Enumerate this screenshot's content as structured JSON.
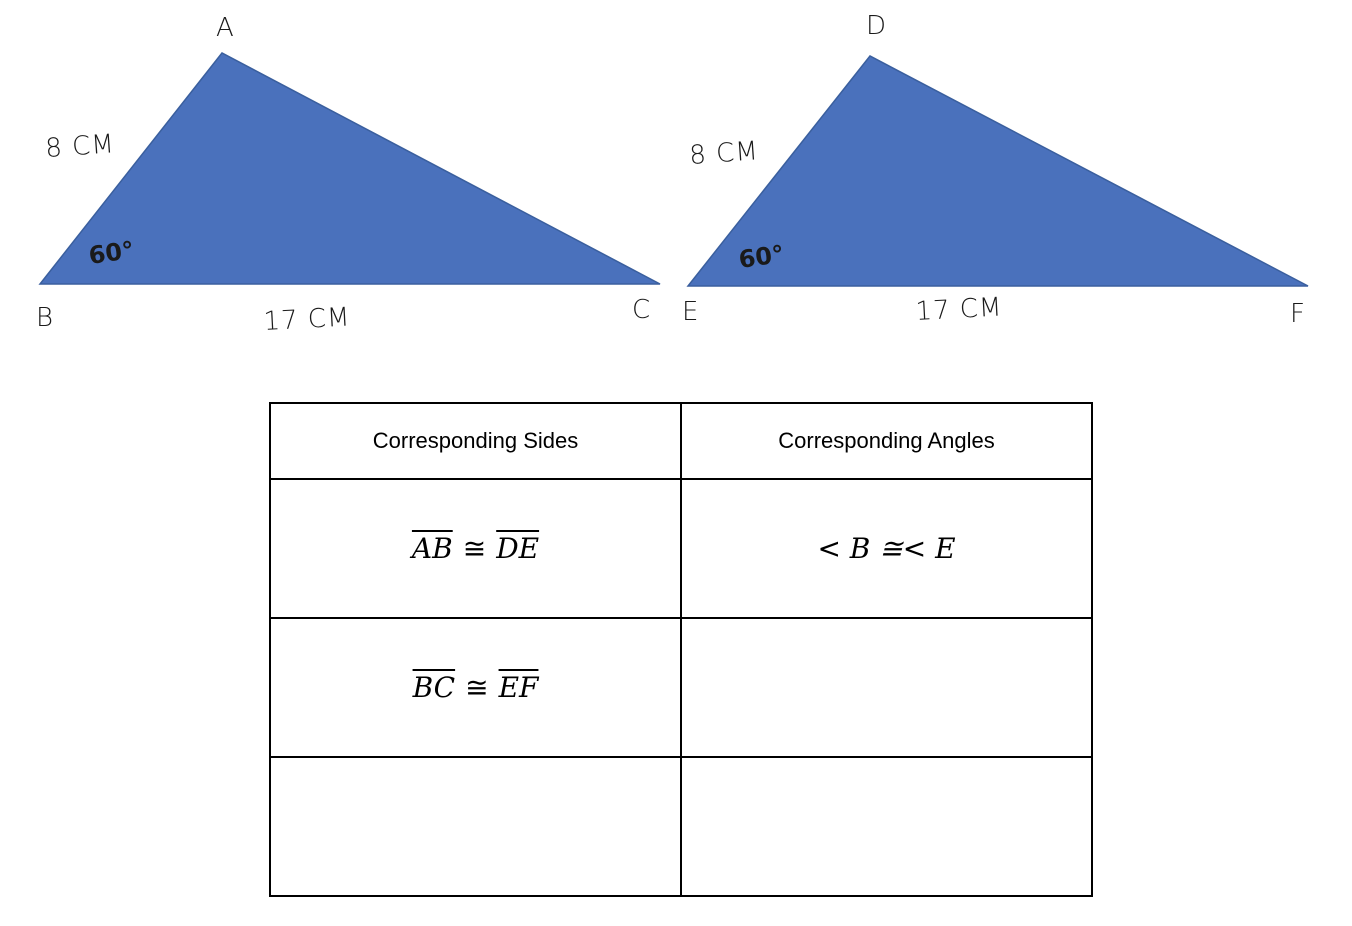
{
  "colors": {
    "triangle_fill": "#4a71bc",
    "triangle_stroke": "#3a5f9e",
    "text": "#1a1a1a"
  },
  "triangle_left": {
    "vertices": {
      "top": "A",
      "bottom_left": "B",
      "bottom_right": "C"
    },
    "side_label": "8 CM",
    "base_label": "17 CM",
    "angle_label": "60°"
  },
  "triangle_right": {
    "vertices": {
      "top": "D",
      "bottom_left": "E",
      "bottom_right": "F"
    },
    "side_label": "8 CM",
    "base_label": "17 CM",
    "angle_label": "60°"
  },
  "table": {
    "headers": [
      "Corresponding Sides",
      "Corresponding Angles"
    ],
    "rows": [
      {
        "side": {
          "a": "AB",
          "op": "≅",
          "b": "DE"
        },
        "angle": {
          "text": "< B ≅< E"
        }
      },
      {
        "side": {
          "a": "BC",
          "op": "≅",
          "b": "EF"
        },
        "angle": {
          "text": ""
        }
      },
      {
        "side": {
          "a": "",
          "op": "",
          "b": ""
        },
        "angle": {
          "text": ""
        }
      }
    ]
  }
}
